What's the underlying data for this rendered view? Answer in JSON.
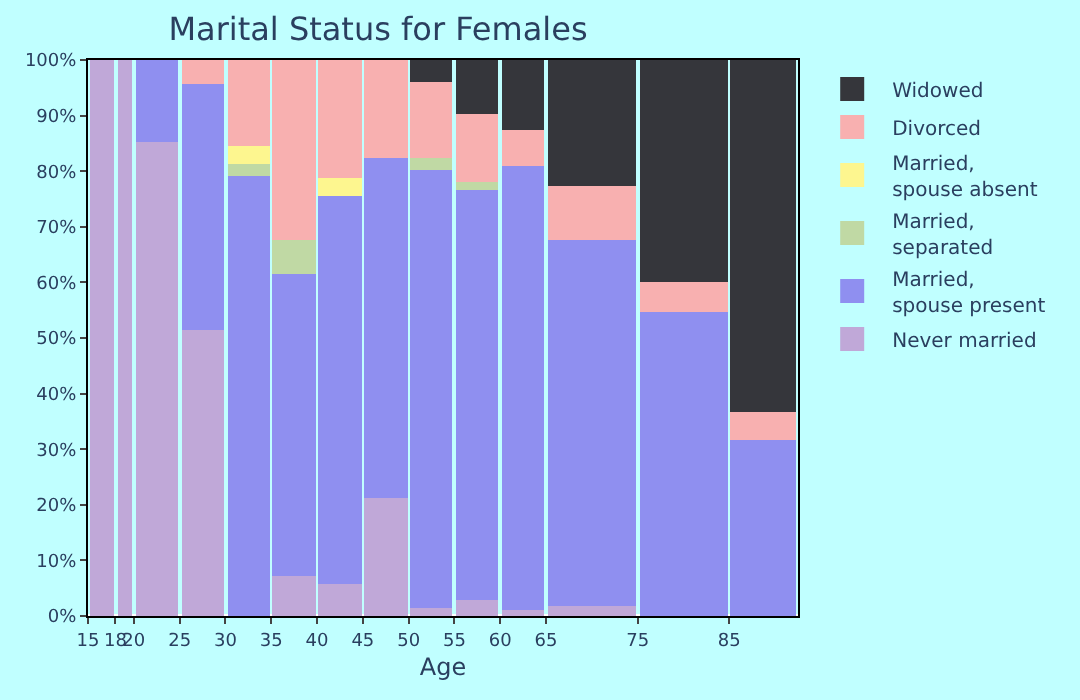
{
  "chart_data": {
    "type": "bar",
    "stacked": true,
    "title": "Marital Status for Females",
    "xlabel": "Age",
    "x": [
      16.5,
      19,
      22.5,
      27.5,
      32.5,
      37.5,
      42.5,
      47.5,
      52.5,
      57.5,
      62.5,
      70,
      80,
      88.75
    ],
    "xlim": [
      15,
      92.5
    ],
    "xticks": [
      15,
      18,
      20,
      25,
      30,
      35,
      40,
      45,
      50,
      55,
      60,
      65,
      75,
      85
    ],
    "ylim": [
      0,
      100
    ],
    "yticks": [
      {
        "value": 0,
        "label": "0%"
      },
      {
        "value": 10,
        "label": "10%"
      },
      {
        "value": 20,
        "label": "20%"
      },
      {
        "value": 30,
        "label": "30%"
      },
      {
        "value": 40,
        "label": "40%"
      },
      {
        "value": 50,
        "label": "50%"
      },
      {
        "value": 60,
        "label": "60%"
      },
      {
        "value": 70,
        "label": "70%"
      },
      {
        "value": 80,
        "label": "80%"
      },
      {
        "value": 90,
        "label": "90%"
      },
      {
        "value": 100,
        "label": "100%"
      }
    ],
    "legend": "right",
    "series": [
      {
        "name": "Never married",
        "color": "#c0a8d8",
        "values": [
          100,
          100,
          85.1,
          51.3,
          null,
          7.3,
          5.9,
          21.4,
          1.5,
          2.9,
          1.1,
          1.8,
          null,
          null
        ]
      },
      {
        "name": "Married, spouse present",
        "color": "#8f8ff0",
        "values": [
          null,
          null,
          14.9,
          44.4,
          79.2,
          54.3,
          69.7,
          60.8,
          78.6,
          73.8,
          80,
          66,
          54.6,
          31.5
        ]
      },
      {
        "name": "Married, separated",
        "color": "#c0d9a4",
        "values": [
          null,
          null,
          null,
          null,
          2.2,
          6.1,
          null,
          null,
          2.2,
          1.4,
          null,
          null,
          null,
          null
        ]
      },
      {
        "name": "Married, spouse absent",
        "color": "#fdf68f",
        "values": [
          null,
          null,
          null,
          null,
          3.3,
          null,
          3.3,
          null,
          null,
          null,
          null,
          null,
          null,
          null
        ]
      },
      {
        "name": "Divorced",
        "color": "#f8b0b0",
        "values": [
          null,
          null,
          null,
          4.3,
          15.3,
          32.3,
          21.1,
          17.8,
          13.8,
          12.1,
          6.2,
          9.6,
          5.5,
          5.2
        ]
      },
      {
        "name": "Widowed",
        "color": "#35363b",
        "values": [
          null,
          null,
          null,
          null,
          null,
          null,
          null,
          null,
          3.9,
          9.8,
          12.7,
          22.6,
          39.9,
          63.3
        ]
      }
    ]
  }
}
